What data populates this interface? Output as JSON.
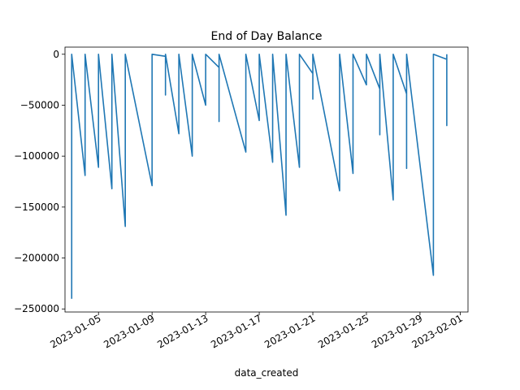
{
  "chart_data": {
    "type": "line",
    "title": "End of Day Balance",
    "xlabel": "data_created",
    "ylabel": "",
    "ylim": [
      -253000,
      7000
    ],
    "xlim": [
      "2023-01-02T12:00",
      "2023-02-01T14:00"
    ],
    "grid": false,
    "legend": "none",
    "color": "#1f77b4",
    "y_ticks": [
      0,
      -50000,
      -100000,
      -150000,
      -200000,
      -250000
    ],
    "y_tick_labels": [
      "0",
      "−50000",
      "−100000",
      "−150000",
      "−200000",
      "−250000"
    ],
    "x_ticks": [
      "2023-01-05",
      "2023-01-09",
      "2023-01-13",
      "2023-01-17",
      "2023-01-21",
      "2023-01-25",
      "2023-01-29",
      "2023-02-01"
    ],
    "series": [
      {
        "points": [
          [
            "2023-01-03T00:00",
            -240000
          ],
          [
            "2023-01-03T00:00",
            0
          ],
          [
            "2023-01-04T00:00",
            -119000
          ],
          [
            "2023-01-04T00:00",
            0
          ],
          [
            "2023-01-05T00:00",
            -111000
          ],
          [
            "2023-01-05T00:00",
            0
          ],
          [
            "2023-01-06T00:00",
            -132000
          ],
          [
            "2023-01-06T00:00",
            0
          ],
          [
            "2023-01-07T00:00",
            -169000
          ],
          [
            "2023-01-07T00:00",
            0
          ],
          [
            "2023-01-09T00:00",
            -129000
          ],
          [
            "2023-01-09T00:00",
            0
          ],
          [
            "2023-01-10T00:00",
            -2000
          ],
          [
            "2023-01-10T00:00",
            -40000
          ],
          [
            "2023-01-10T00:00",
            0
          ],
          [
            "2023-01-11T00:00",
            -78000
          ],
          [
            "2023-01-11T00:00",
            0
          ],
          [
            "2023-01-12T00:00",
            -100000
          ],
          [
            "2023-01-12T00:00",
            0
          ],
          [
            "2023-01-13T00:00",
            -50000
          ],
          [
            "2023-01-13T00:00",
            0
          ],
          [
            "2023-01-14T00:00",
            -13000
          ],
          [
            "2023-01-14T00:00",
            -66000
          ],
          [
            "2023-01-14T00:00",
            0
          ],
          [
            "2023-01-16T00:00",
            -96000
          ],
          [
            "2023-01-16T00:00",
            0
          ],
          [
            "2023-01-17T00:00",
            -65000
          ],
          [
            "2023-01-17T00:00",
            0
          ],
          [
            "2023-01-18T00:00",
            -106000
          ],
          [
            "2023-01-18T00:00",
            0
          ],
          [
            "2023-01-19T00:00",
            -158000
          ],
          [
            "2023-01-19T00:00",
            0
          ],
          [
            "2023-01-20T00:00",
            -111000
          ],
          [
            "2023-01-20T00:00",
            0
          ],
          [
            "2023-01-21T00:00",
            -19000
          ],
          [
            "2023-01-21T00:00",
            -44000
          ],
          [
            "2023-01-21T00:00",
            0
          ],
          [
            "2023-01-23T00:00",
            -134000
          ],
          [
            "2023-01-23T00:00",
            0
          ],
          [
            "2023-01-24T00:00",
            -117000
          ],
          [
            "2023-01-24T00:00",
            0
          ],
          [
            "2023-01-25T00:00",
            -30000
          ],
          [
            "2023-01-25T00:00",
            0
          ],
          [
            "2023-01-26T00:00",
            -34000
          ],
          [
            "2023-01-26T00:00",
            -79000
          ],
          [
            "2023-01-26T00:00",
            0
          ],
          [
            "2023-01-27T00:00",
            -143000
          ],
          [
            "2023-01-27T00:00",
            0
          ],
          [
            "2023-01-28T00:00",
            -39000
          ],
          [
            "2023-01-28T00:00",
            -112000
          ],
          [
            "2023-01-28T00:00",
            0
          ],
          [
            "2023-01-30T00:00",
            -217000
          ],
          [
            "2023-01-30T00:00",
            0
          ],
          [
            "2023-01-31T00:00",
            -5000
          ],
          [
            "2023-01-31T00:00",
            -70000
          ],
          [
            "2023-01-31T00:00",
            0
          ]
        ]
      }
    ]
  }
}
